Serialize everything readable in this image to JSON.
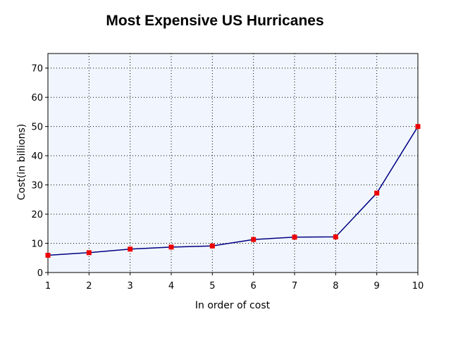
{
  "chart_data": {
    "type": "line",
    "title": "Most Expensive US Hurricanes",
    "xlabel": "In order of cost",
    "ylabel": "Cost(in billions)",
    "x": [
      1,
      2,
      3,
      4,
      5,
      6,
      7,
      8,
      9,
      10
    ],
    "series": [
      {
        "values": [
          5.9,
          6.8,
          8.0,
          8.7,
          9.1,
          11.3,
          12.1,
          12.2,
          27.2,
          50.0
        ]
      }
    ],
    "xlim": [
      1,
      10
    ],
    "ylim": [
      0,
      75
    ],
    "xticks": [
      "1",
      "2",
      "3",
      "4",
      "5",
      "6",
      "7",
      "8",
      "9",
      "10"
    ],
    "yticks": [
      "0",
      "10",
      "20",
      "30",
      "40",
      "50",
      "60",
      "70"
    ],
    "grid": true,
    "legend": "none",
    "colors": {
      "line": "#000080",
      "marker": "#ee0000",
      "plot_background": "#f1f6fe",
      "grid": "#000000"
    }
  }
}
